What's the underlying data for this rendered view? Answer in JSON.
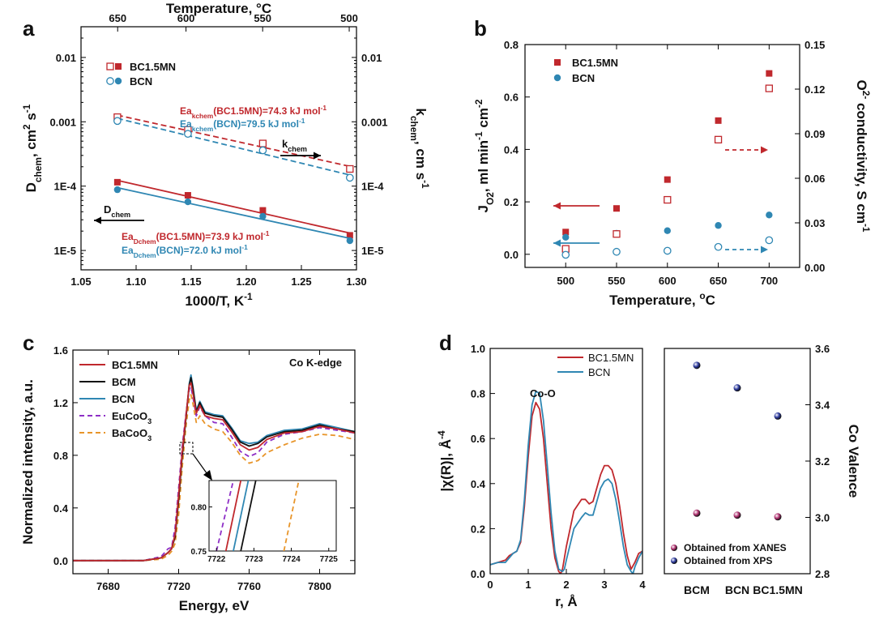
{
  "chart_data": [
    {
      "id": "a",
      "type": "scatter",
      "panel_label": "a",
      "xlabel": "1000/T, K",
      "xlabel_sup": "-1",
      "xlim": [
        1.05,
        1.3
      ],
      "x_ticks": [
        "1.05",
        "1.10",
        "1.15",
        "1.20",
        "1.25",
        "1.30"
      ],
      "top_xlabel": "Temperature, °C",
      "top_ticks": [
        "650",
        "600",
        "550",
        "500"
      ],
      "ylabel_left": "D_chem, cm^2 s^-1",
      "ylabel_right": "k_chem, cm s^-1",
      "y_scale": "log",
      "ylim": [
        5e-06,
        0.03
      ],
      "y_ticks": [
        "1E-5",
        "1E-4",
        "0.001",
        "0.01"
      ],
      "right_ticks": [
        "1E-5",
        "1E-4",
        "0.001",
        "0.01"
      ],
      "legend": [
        "BC1.5MN",
        "BCN"
      ],
      "series": [
        {
          "name": "BC1.5MN D_chem",
          "marker": "filled-square",
          "color": "#c0282d",
          "x": [
            1.083,
            1.147,
            1.215,
            1.294
          ],
          "y": [
            0.000115,
            7.2e-05,
            4.2e-05,
            1.72e-05
          ]
        },
        {
          "name": "BCN D_chem",
          "marker": "filled-circle",
          "color": "#2f87b3",
          "x": [
            1.083,
            1.147,
            1.215,
            1.294
          ],
          "y": [
            8.8e-05,
            5.7e-05,
            3.4e-05,
            1.42e-05
          ]
        },
        {
          "name": "BC1.5MN k_chem",
          "marker": "open-square",
          "color": "#c0282d",
          "x": [
            1.083,
            1.147,
            1.215,
            1.294
          ],
          "y": [
            0.00118,
            0.00075,
            0.00046,
            0.000185
          ]
        },
        {
          "name": "BCN k_chem",
          "marker": "open-circle",
          "color": "#2f87b3",
          "x": [
            1.083,
            1.147,
            1.215,
            1.294
          ],
          "y": [
            0.00103,
            0.00065,
            0.00036,
            0.000135
          ]
        }
      ],
      "annotations": {
        "k_arrow": "k",
        "k_arrow_sub": "chem",
        "d_arrow": "D",
        "d_arrow_sub": "chem",
        "ea_k_bc15": {
          "pre": "Ea",
          "sub": "kchem",
          "post": "(BC1.5MN)=74.3 kJ mol",
          "sup": "-1"
        },
        "ea_k_bcn": {
          "pre": "Ea",
          "sub": "kchem",
          "post": "(BCN)=79.5 kJ mol",
          "sup": "-1"
        },
        "ea_d_bc15": {
          "pre": "Ea",
          "sub": "Dchem",
          "post": "(BC1.5MN)=73.9 kJ mol",
          "sup": "-1"
        },
        "ea_d_bcn": {
          "pre": "Ea",
          "sub": "Dchem",
          "post": "(BCN)=72.0 kJ mol",
          "sup": "-1"
        }
      }
    },
    {
      "id": "b",
      "type": "scatter",
      "panel_label": "b",
      "xlabel": "Temperature, °C",
      "xlim": [
        460,
        730
      ],
      "x_ticks": [
        "500",
        "550",
        "600",
        "650",
        "700"
      ],
      "ylabel_left": "J_O2, ml min^-1 cm^-2",
      "ylim_left": [
        -0.05,
        0.8
      ],
      "y_ticks_left": [
        "0.0",
        "0.2",
        "0.4",
        "0.6",
        "0.8"
      ],
      "ylabel_right": "O^2- conductivity, S cm^-1",
      "ylim_right": [
        0,
        0.15
      ],
      "y_ticks_right": [
        "0.00",
        "0.03",
        "0.06",
        "0.09",
        "0.12",
        "0.15"
      ],
      "legend": [
        "BC1.5MN",
        "BCN"
      ],
      "series": [
        {
          "name": "BC1.5MN J_O2",
          "axis": "left",
          "marker": "filled-square",
          "color": "#c0282d",
          "x": [
            500,
            550,
            600,
            650,
            700
          ],
          "y": [
            0.085,
            0.175,
            0.285,
            0.51,
            0.69
          ]
        },
        {
          "name": "BCN J_O2",
          "axis": "left",
          "marker": "filled-circle",
          "color": "#2f87b3",
          "x": [
            500,
            550,
            600,
            650,
            700
          ],
          "y": [
            0.065,
            0.08,
            0.09,
            0.11,
            0.15
          ]
        },
        {
          "name": "BC1.5MN conductivity",
          "axis": "right",
          "marker": "open-square",
          "color": "#c0282d",
          "x": [
            500,
            550,
            600,
            650,
            700
          ],
          "y": [
            0.0125,
            0.0225,
            0.0455,
            0.086,
            0.1205
          ]
        },
        {
          "name": "BCN conductivity",
          "axis": "right",
          "marker": "open-circle",
          "color": "#2f87b3",
          "x": [
            500,
            550,
            600,
            650,
            700
          ],
          "y": [
            0.0085,
            0.0105,
            0.0112,
            0.0138,
            0.0183
          ]
        }
      ]
    },
    {
      "id": "c",
      "type": "line",
      "panel_label": "c",
      "title_inside": "Co K-edge",
      "xlabel": "Energy, eV",
      "xlim": [
        7660,
        7820
      ],
      "x_ticks": [
        "7680",
        "7720",
        "7760",
        "7800"
      ],
      "ylabel": "Normalized intensity, a.u.",
      "ylim": [
        -0.1,
        1.6
      ],
      "y_ticks": [
        "0.0",
        "0.4",
        "0.8",
        "1.2",
        "1.6"
      ],
      "legend": [
        {
          "label": "BC1.5MN",
          "color": "#c0282d",
          "dash": "solid"
        },
        {
          "label": "BCM",
          "color": "#111111",
          "dash": "solid"
        },
        {
          "label": "BCN",
          "color": "#2f87b3",
          "dash": "solid"
        },
        {
          "label": "EuCoO",
          "sub": "3",
          "color": "#8e2fc6",
          "dash": "dashed"
        },
        {
          "label": "BaCoO",
          "sub": "3",
          "color": "#e8952a",
          "dash": "dashed"
        }
      ],
      "series": [
        {
          "name": "BC1.5MN",
          "color": "#c0282d",
          "x": [
            7660,
            7700,
            7710,
            7714,
            7716,
            7718,
            7720,
            7722,
            7724,
            7726,
            7727,
            7728,
            7730,
            7732,
            7735,
            7740,
            7745,
            7750,
            7755,
            7760,
            7765,
            7770,
            7780,
            7790,
            7800,
            7810,
            7820
          ],
          "y": [
            0,
            0,
            0.02,
            0.06,
            0.09,
            0.2,
            0.5,
            0.82,
            1.08,
            1.33,
            1.35,
            1.28,
            1.12,
            1.18,
            1.1,
            1.08,
            1.07,
            0.98,
            0.88,
            0.84,
            0.86,
            0.92,
            0.97,
            0.98,
            1.02,
            1.0,
            0.97
          ]
        },
        {
          "name": "BCM",
          "color": "#111111",
          "x": [
            7660,
            7700,
            7710,
            7714,
            7716,
            7718,
            7720,
            7722,
            7724,
            7726,
            7727,
            7728,
            7730,
            7732,
            7735,
            7740,
            7745,
            7750,
            7755,
            7760,
            7765,
            7770,
            7780,
            7790,
            7800,
            7810,
            7820
          ],
          "y": [
            0,
            0,
            0.02,
            0.06,
            0.09,
            0.18,
            0.46,
            0.79,
            1.06,
            1.33,
            1.39,
            1.32,
            1.13,
            1.2,
            1.12,
            1.1,
            1.09,
            1.0,
            0.9,
            0.87,
            0.89,
            0.94,
            0.98,
            0.99,
            1.03,
            1.0,
            0.98
          ]
        },
        {
          "name": "BCN",
          "color": "#2f87b3",
          "x": [
            7660,
            7700,
            7710,
            7714,
            7716,
            7718,
            7720,
            7722,
            7724,
            7726,
            7727,
            7728,
            7730,
            7732,
            7735,
            7740,
            7745,
            7750,
            7755,
            7760,
            7765,
            7770,
            7780,
            7790,
            7800,
            7810,
            7820
          ],
          "y": [
            0,
            0,
            0.02,
            0.06,
            0.09,
            0.19,
            0.48,
            0.8,
            1.07,
            1.34,
            1.41,
            1.33,
            1.14,
            1.21,
            1.13,
            1.11,
            1.1,
            1.01,
            0.91,
            0.89,
            0.9,
            0.95,
            0.99,
            1.0,
            1.04,
            1.01,
            0.98
          ]
        },
        {
          "name": "EuCoO3",
          "color": "#8e2fc6",
          "dash": "dashed",
          "x": [
            7660,
            7700,
            7710,
            7714,
            7716,
            7718,
            7720,
            7722,
            7724,
            7726,
            7727,
            7728,
            7730,
            7732,
            7735,
            7740,
            7745,
            7750,
            7755,
            7760,
            7765,
            7770,
            7780,
            7790,
            7800,
            7810,
            7820
          ],
          "y": [
            0,
            0,
            0.03,
            0.09,
            0.1,
            0.25,
            0.55,
            0.86,
            1.1,
            1.3,
            1.32,
            1.25,
            1.1,
            1.17,
            1.1,
            1.05,
            1.04,
            0.94,
            0.83,
            0.79,
            0.82,
            0.9,
            0.96,
            0.98,
            1.01,
            0.99,
            0.97
          ]
        },
        {
          "name": "BaCoO3",
          "color": "#e8952a",
          "dash": "dashed",
          "x": [
            7660,
            7700,
            7710,
            7714,
            7716,
            7718,
            7720,
            7722,
            7724,
            7726,
            7727,
            7728,
            7730,
            7732,
            7735,
            7740,
            7745,
            7750,
            7755,
            7760,
            7765,
            7770,
            7780,
            7790,
            7800,
            7810,
            7820
          ],
          "y": [
            0,
            0,
            0.01,
            0.04,
            0.07,
            0.13,
            0.35,
            0.7,
            1.0,
            1.22,
            1.26,
            1.2,
            1.05,
            1.1,
            1.04,
            1.0,
            0.98,
            0.9,
            0.8,
            0.74,
            0.76,
            0.82,
            0.88,
            0.93,
            0.96,
            0.95,
            0.92
          ]
        }
      ],
      "inset": {
        "xlim": [
          7721.8,
          7725.2
        ],
        "x_ticks": [
          "7722",
          "7723",
          "7724",
          "7725"
        ],
        "ylim": [
          0.75,
          0.83
        ],
        "y_ticks": [
          "0.75",
          "0.80"
        ],
        "series": [
          {
            "name": "EuCoO3",
            "color": "#8e2fc6",
            "dash": "dashed",
            "x": [
              7722.0,
              7722.45
            ],
            "y": [
              0.75,
              0.83
            ]
          },
          {
            "name": "BC1.5MN",
            "color": "#c0282d",
            "x": [
              7722.25,
              7722.65
            ],
            "y": [
              0.75,
              0.83
            ]
          },
          {
            "name": "BCN",
            "color": "#2f87b3",
            "x": [
              7722.45,
              7722.85
            ],
            "y": [
              0.75,
              0.83
            ]
          },
          {
            "name": "BCM",
            "color": "#111111",
            "x": [
              7722.65,
              7723.05
            ],
            "y": [
              0.75,
              0.83
            ]
          },
          {
            "name": "BaCoO3",
            "color": "#e8952a",
            "dash": "dashed",
            "x": [
              7723.8,
              7724.2
            ],
            "y": [
              0.75,
              0.83
            ]
          }
        ]
      }
    },
    {
      "id": "d",
      "type": "line",
      "panel_label": "d",
      "xlabel": "r, Å",
      "xlim": [
        0,
        4
      ],
      "x_ticks": [
        "0",
        "1",
        "2",
        "3",
        "4"
      ],
      "ylabel": "|χ(R)|, Å^-4",
      "ylim": [
        0,
        1.0
      ],
      "y_ticks": [
        "0.0",
        "0.2",
        "0.4",
        "0.6",
        "0.8",
        "1.0"
      ],
      "annotation": "Co-O",
      "legend": [
        {
          "label": "BC1.5MN",
          "color": "#c0282d"
        },
        {
          "label": "BCN",
          "color": "#2f87b3"
        }
      ],
      "series": [
        {
          "name": "BC1.5MN",
          "color": "#c0282d",
          "x": [
            0,
            0.2,
            0.4,
            0.5,
            0.6,
            0.7,
            0.8,
            0.9,
            1.0,
            1.1,
            1.2,
            1.3,
            1.4,
            1.5,
            1.6,
            1.7,
            1.8,
            1.85,
            1.9,
            2.0,
            2.2,
            2.4,
            2.5,
            2.6,
            2.7,
            2.8,
            2.9,
            3.0,
            3.1,
            3.2,
            3.3,
            3.4,
            3.5,
            3.6,
            3.7,
            3.8,
            3.9,
            4.0
          ],
          "y": [
            0.04,
            0.05,
            0.06,
            0.08,
            0.09,
            0.1,
            0.14,
            0.3,
            0.52,
            0.7,
            0.76,
            0.73,
            0.6,
            0.4,
            0.2,
            0.07,
            0.01,
            0.0,
            0.02,
            0.12,
            0.28,
            0.33,
            0.33,
            0.31,
            0.32,
            0.38,
            0.44,
            0.48,
            0.48,
            0.46,
            0.4,
            0.3,
            0.18,
            0.08,
            0.02,
            0.05,
            0.09,
            0.1
          ]
        },
        {
          "name": "BCN",
          "color": "#2f87b3",
          "x": [
            0,
            0.2,
            0.4,
            0.5,
            0.6,
            0.7,
            0.8,
            0.9,
            1.0,
            1.1,
            1.2,
            1.3,
            1.4,
            1.5,
            1.6,
            1.7,
            1.8,
            1.9,
            1.95,
            2.0,
            2.2,
            2.4,
            2.5,
            2.6,
            2.7,
            2.8,
            2.9,
            3.0,
            3.1,
            3.2,
            3.3,
            3.4,
            3.5,
            3.6,
            3.7,
            3.75,
            3.8,
            3.9,
            4.0
          ],
          "y": [
            0.04,
            0.05,
            0.05,
            0.07,
            0.09,
            0.1,
            0.15,
            0.33,
            0.57,
            0.75,
            0.81,
            0.8,
            0.68,
            0.48,
            0.27,
            0.1,
            0.02,
            0.01,
            0.02,
            0.06,
            0.2,
            0.25,
            0.27,
            0.26,
            0.26,
            0.32,
            0.38,
            0.41,
            0.42,
            0.4,
            0.33,
            0.23,
            0.12,
            0.04,
            0.01,
            0.0,
            0.03,
            0.07,
            0.1
          ]
        }
      ]
    },
    {
      "id": "d2",
      "type": "scatter",
      "ylabel_right": "Co Valence",
      "categories": [
        "BCM",
        "BCN",
        "BC1.5MN"
      ],
      "ylim": [
        2.8,
        3.6
      ],
      "y_ticks": [
        "2.8",
        "3.0",
        "3.2",
        "3.4",
        "3.6"
      ],
      "legend": [
        {
          "label": "Obtained from XANES",
          "color": "#b0306f"
        },
        {
          "label": "Obtained from XPS",
          "color": "#2c3a9e"
        }
      ],
      "series": [
        {
          "name": "Obtained from XANES",
          "color": "#b0306f",
          "values": [
            3.015,
            3.008,
            3.002
          ]
        },
        {
          "name": "Obtained from XPS",
          "color": "#2c3a9e",
          "values": [
            3.54,
            3.46,
            3.36
          ]
        }
      ]
    }
  ]
}
